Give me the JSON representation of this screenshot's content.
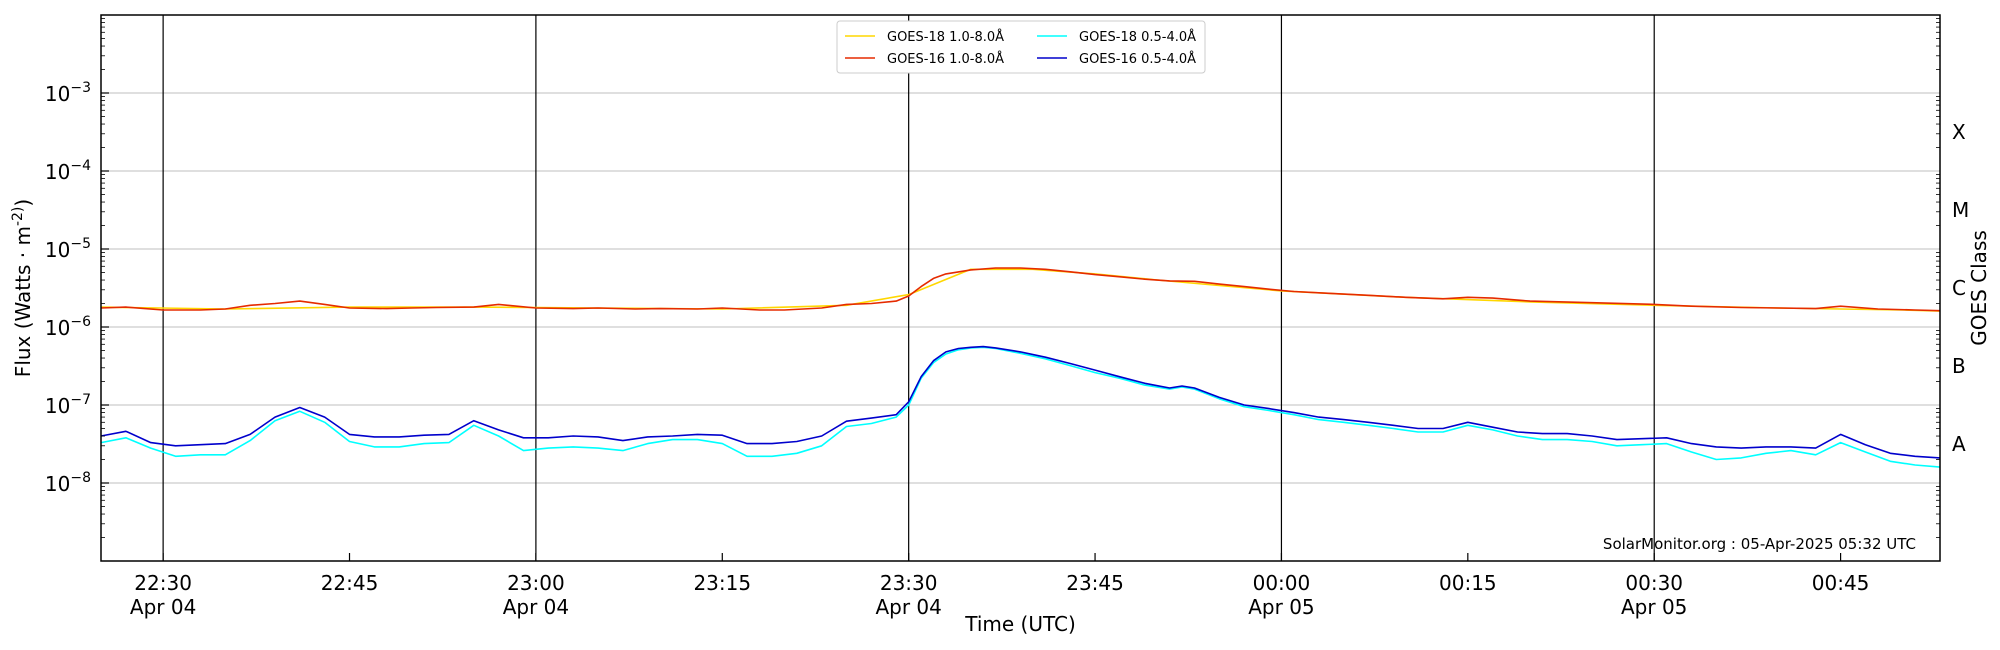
{
  "chart_data": {
    "type": "line",
    "xlabel": "Time (UTC)",
    "ylabel": "Flux (Watts · m^-2)",
    "ylabel_right": "GOES Class",
    "y_scale": "log",
    "ylim": [
      1e-09,
      0.01
    ],
    "x_range_minutes": [
      -95,
      53
    ],
    "grid": "horizontal",
    "legend_position": "top-center",
    "watermark": "SolarMonitor.org : 05-Apr-2025 05:32 UTC",
    "y_ticks": [
      {
        "label_base": "10",
        "label_exp": "−8",
        "value": 1e-08
      },
      {
        "label_base": "10",
        "label_exp": "−7",
        "value": 1e-07
      },
      {
        "label_base": "10",
        "label_exp": "−6",
        "value": 1e-06
      },
      {
        "label_base": "10",
        "label_exp": "−5",
        "value": 1e-05
      },
      {
        "label_base": "10",
        "label_exp": "−4",
        "value": 0.0001
      },
      {
        "label_base": "10",
        "label_exp": "−3",
        "value": 0.001
      }
    ],
    "goes_classes": [
      {
        "label": "A",
        "value": 3.16e-08
      },
      {
        "label": "B",
        "value": 3.16e-07
      },
      {
        "label": "C",
        "value": 3.16e-06
      },
      {
        "label": "M",
        "value": 3.16e-05
      },
      {
        "label": "X",
        "value": 0.000316
      }
    ],
    "x_ticks": [
      {
        "time": "22:30",
        "date": "Apr 04",
        "minute": -90,
        "vline": true
      },
      {
        "time": "22:45",
        "date": "",
        "minute": -75,
        "vline": false
      },
      {
        "time": "23:00",
        "date": "Apr 04",
        "minute": -60,
        "vline": true
      },
      {
        "time": "23:15",
        "date": "",
        "minute": -45,
        "vline": false
      },
      {
        "time": "23:30",
        "date": "Apr 04",
        "minute": -30,
        "vline": true
      },
      {
        "time": "23:45",
        "date": "",
        "minute": -15,
        "vline": false
      },
      {
        "time": "00:00",
        "date": "Apr 05",
        "minute": 0,
        "vline": true
      },
      {
        "time": "00:15",
        "date": "",
        "minute": 15,
        "vline": false
      },
      {
        "time": "00:30",
        "date": "Apr 05",
        "minute": 30,
        "vline": true
      },
      {
        "time": "00:45",
        "date": "",
        "minute": 45,
        "vline": false
      }
    ],
    "series": [
      {
        "name": "GOES-18 1.0-8.0Å",
        "color": "#ffd700",
        "x": [
          -95,
          -85,
          -75,
          -65,
          -55,
          -45,
          -35,
          -30,
          -25,
          -20,
          -15,
          -10,
          -5,
          0,
          10,
          20,
          30,
          40,
          50,
          53
        ],
        "values": [
          1.8e-06,
          1.7e-06,
          1.8e-06,
          1.8e-06,
          1.75e-06,
          1.7e-06,
          1.9e-06,
          2.6e-06,
          5.5e-06,
          5.5e-06,
          4.8e-06,
          4e-06,
          3.4e-06,
          2.9e-06,
          2.4e-06,
          2.1e-06,
          1.9e-06,
          1.75e-06,
          1.65e-06,
          1.6e-06
        ]
      },
      {
        "name": "GOES-16 1.0-8.0Å",
        "color": "#e52b00",
        "x": [
          -95,
          -93,
          -90,
          -87,
          -85,
          -83,
          -81,
          -79,
          -77,
          -75,
          -72,
          -70,
          -68,
          -65,
          -63,
          -60,
          -57,
          -55,
          -52,
          -50,
          -47,
          -45,
          -42,
          -40,
          -37,
          -35,
          -33,
          -31,
          -30,
          -29,
          -28,
          -27,
          -25,
          -23,
          -21,
          -19,
          -17,
          -15,
          -13,
          -11,
          -9,
          -7,
          -5,
          -3,
          -1,
          1,
          4,
          7,
          10,
          13,
          15,
          17,
          20,
          25,
          30,
          33,
          37,
          40,
          43,
          45,
          48,
          51,
          53
        ],
        "values": [
          1.75e-06,
          1.8e-06,
          1.65e-06,
          1.65e-06,
          1.7e-06,
          1.9e-06,
          2e-06,
          2.15e-06,
          1.95e-06,
          1.75e-06,
          1.72e-06,
          1.75e-06,
          1.78e-06,
          1.8e-06,
          1.95e-06,
          1.75e-06,
          1.72e-06,
          1.75e-06,
          1.7e-06,
          1.72e-06,
          1.7e-06,
          1.75e-06,
          1.65e-06,
          1.65e-06,
          1.75e-06,
          1.95e-06,
          2e-06,
          2.15e-06,
          2.5e-06,
          3.3e-06,
          4.2e-06,
          4.8e-06,
          5.4e-06,
          5.7e-06,
          5.7e-06,
          5.5e-06,
          5.1e-06,
          4.7e-06,
          4.4e-06,
          4.1e-06,
          3.9e-06,
          3.85e-06,
          3.55e-06,
          3.3e-06,
          3.05e-06,
          2.85e-06,
          2.7e-06,
          2.55e-06,
          2.4e-06,
          2.3e-06,
          2.4e-06,
          2.35e-06,
          2.15e-06,
          2.05e-06,
          1.95e-06,
          1.85e-06,
          1.78e-06,
          1.75e-06,
          1.72e-06,
          1.85e-06,
          1.7e-06,
          1.65e-06,
          1.62e-06
        ]
      },
      {
        "name": "GOES-18 0.5-4.0Å",
        "color": "#00ffff",
        "x": [
          -95,
          -93,
          -91,
          -89,
          -87,
          -85,
          -83,
          -81,
          -79,
          -77,
          -75,
          -73,
          -71,
          -69,
          -67,
          -65,
          -63,
          -61,
          -59,
          -57,
          -55,
          -53,
          -51,
          -49,
          -47,
          -45,
          -43,
          -41,
          -39,
          -37,
          -35,
          -33,
          -31,
          -30,
          -29,
          -28,
          -27,
          -26,
          -25,
          -24,
          -23,
          -21,
          -19,
          -17,
          -15,
          -13,
          -11,
          -9,
          -8,
          -7,
          -5,
          -3,
          -1,
          1,
          3,
          5,
          7,
          9,
          11,
          13,
          15,
          17,
          19,
          21,
          23,
          25,
          27,
          29,
          31,
          33,
          35,
          37,
          39,
          41,
          43,
          45,
          47,
          49,
          51,
          53
        ],
        "values": [
          3.3e-08,
          3.8e-08,
          2.8e-08,
          2.2e-08,
          2.3e-08,
          2.3e-08,
          3.5e-08,
          6.3e-08,
          8.3e-08,
          6e-08,
          3.4e-08,
          2.9e-08,
          2.9e-08,
          3.2e-08,
          3.3e-08,
          5.5e-08,
          4e-08,
          2.6e-08,
          2.8e-08,
          2.9e-08,
          2.8e-08,
          2.6e-08,
          3.2e-08,
          3.6e-08,
          3.6e-08,
          3.2e-08,
          2.2e-08,
          2.2e-08,
          2.4e-08,
          3e-08,
          5.3e-08,
          5.8e-08,
          7e-08,
          1e-07,
          2.2e-07,
          3.5e-07,
          4.5e-07,
          5.1e-07,
          5.4e-07,
          5.5e-07,
          5.3e-07,
          4.6e-07,
          3.9e-07,
          3.2e-07,
          2.6e-07,
          2.2e-07,
          1.8e-07,
          1.6e-07,
          1.7e-07,
          1.6e-07,
          1.2e-07,
          9.5e-08,
          8.5e-08,
          7.5e-08,
          6.5e-08,
          6e-08,
          5.5e-08,
          5e-08,
          4.5e-08,
          4.5e-08,
          5.5e-08,
          4.8e-08,
          4e-08,
          3.6e-08,
          3.6e-08,
          3.4e-08,
          3e-08,
          3.1e-08,
          3.2e-08,
          2.5e-08,
          2e-08,
          2.1e-08,
          2.4e-08,
          2.6e-08,
          2.3e-08,
          3.3e-08,
          2.5e-08,
          1.9e-08,
          1.7e-08,
          1.6e-08
        ]
      },
      {
        "name": "GOES-16 0.5-4.0Å",
        "color": "#0000cc",
        "x": [
          -95,
          -93,
          -91,
          -89,
          -87,
          -85,
          -83,
          -81,
          -79,
          -77,
          -75,
          -73,
          -71,
          -69,
          -67,
          -65,
          -63,
          -61,
          -59,
          -57,
          -55,
          -53,
          -51,
          -49,
          -47,
          -45,
          -43,
          -41,
          -39,
          -37,
          -35,
          -33,
          -31,
          -30,
          -29,
          -28,
          -27,
          -26,
          -25,
          -24,
          -23,
          -21,
          -19,
          -17,
          -15,
          -13,
          -11,
          -9,
          -8,
          -7,
          -5,
          -3,
          -1,
          1,
          3,
          5,
          7,
          9,
          11,
          13,
          15,
          17,
          19,
          21,
          23,
          25,
          27,
          29,
          31,
          33,
          35,
          37,
          39,
          41,
          43,
          45,
          47,
          49,
          51,
          53
        ],
        "values": [
          4e-08,
          4.6e-08,
          3.3e-08,
          3e-08,
          3.1e-08,
          3.2e-08,
          4.2e-08,
          7e-08,
          9.3e-08,
          7e-08,
          4.2e-08,
          3.9e-08,
          3.9e-08,
          4.1e-08,
          4.2e-08,
          6.3e-08,
          4.8e-08,
          3.8e-08,
          3.8e-08,
          4e-08,
          3.9e-08,
          3.5e-08,
          3.9e-08,
          4e-08,
          4.2e-08,
          4.1e-08,
          3.2e-08,
          3.2e-08,
          3.4e-08,
          4e-08,
          6.2e-08,
          6.8e-08,
          7.5e-08,
          1.1e-07,
          2.3e-07,
          3.7e-07,
          4.8e-07,
          5.3e-07,
          5.5e-07,
          5.6e-07,
          5.4e-07,
          4.8e-07,
          4.1e-07,
          3.4e-07,
          2.8e-07,
          2.3e-07,
          1.9e-07,
          1.65e-07,
          1.75e-07,
          1.65e-07,
          1.25e-07,
          1e-07,
          9e-08,
          8e-08,
          7e-08,
          6.5e-08,
          6e-08,
          5.5e-08,
          5e-08,
          5e-08,
          6e-08,
          5.2e-08,
          4.5e-08,
          4.3e-08,
          4.3e-08,
          4e-08,
          3.6e-08,
          3.7e-08,
          3.8e-08,
          3.2e-08,
          2.9e-08,
          2.8e-08,
          2.9e-08,
          2.9e-08,
          2.8e-08,
          4.2e-08,
          3.1e-08,
          2.4e-08,
          2.2e-08,
          2.1e-08
        ]
      }
    ]
  }
}
